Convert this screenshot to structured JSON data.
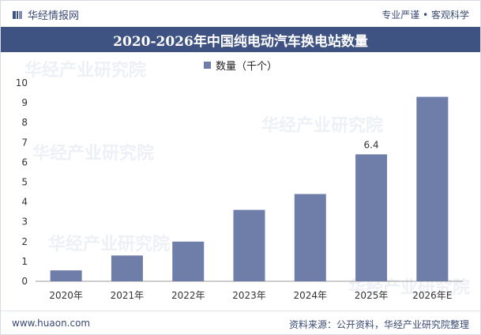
{
  "header": {
    "brand": "华经情报网",
    "slogan": "专业严谨 • 客观科学"
  },
  "title": "2020-2026年中国纯电动汽车换电站数量",
  "footer": {
    "url": "www.huaon.com",
    "source": "资料来源：公开资料，华经产业研究院整理"
  },
  "watermark": "华经产业研究院",
  "colors": {
    "bar": "#6f7ea8",
    "title_bg": "#3f5382",
    "text": "#3b4a75"
  },
  "chart_data": {
    "type": "bar",
    "categories": [
      "2020年",
      "2021年",
      "2022年",
      "2023年",
      "2024年",
      "2025年",
      "2026年E"
    ],
    "series": [
      {
        "name": "数量（千个）",
        "values": [
          0.55,
          1.3,
          2.0,
          3.6,
          4.4,
          6.4,
          9.3
        ]
      }
    ],
    "data_labels": {
      "5": "6.4"
    },
    "ylim": [
      0,
      10
    ],
    "yticks": [
      0,
      1,
      2,
      3,
      4,
      5,
      6,
      7,
      8,
      9,
      10
    ],
    "grid": false,
    "legend_position": "top-center"
  }
}
